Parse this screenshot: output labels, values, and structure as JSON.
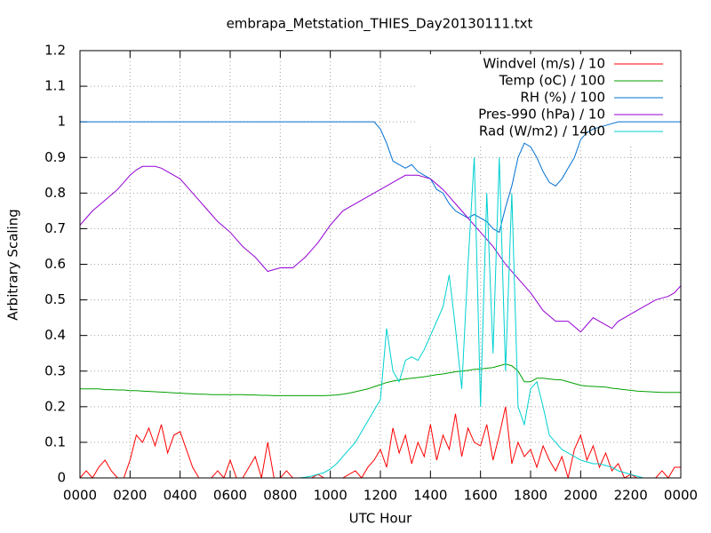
{
  "chart_data": {
    "type": "line",
    "title": "embrapa_Metstation_THIES_Day20130111.txt",
    "x_label": "UTC Hour",
    "y_label": "Arbitrary Scaling",
    "xlim": [
      0,
      24
    ],
    "ylim": [
      0,
      1.2
    ],
    "xticks": [
      {
        "value": 0,
        "label": "0000"
      },
      {
        "value": 2,
        "label": "0200"
      },
      {
        "value": 4,
        "label": "0400"
      },
      {
        "value": 6,
        "label": "0600"
      },
      {
        "value": 8,
        "label": "0800"
      },
      {
        "value": 10,
        "label": "1000"
      },
      {
        "value": 12,
        "label": "1200"
      },
      {
        "value": 14,
        "label": "1400"
      },
      {
        "value": 16,
        "label": "1600"
      },
      {
        "value": 18,
        "label": "1800"
      },
      {
        "value": 20,
        "label": "2000"
      },
      {
        "value": 22,
        "label": "2200"
      },
      {
        "value": 24,
        "label": "0000"
      }
    ],
    "yticks": [
      0,
      0.1,
      0.2,
      0.3,
      0.4,
      0.5,
      0.6,
      0.7,
      0.8,
      0.9,
      1,
      1.1,
      1.2
    ],
    "grid": true,
    "legend": "top-right",
    "x": [
      0,
      0.25,
      0.5,
      0.75,
      1,
      1.25,
      1.5,
      1.75,
      2,
      2.25,
      2.5,
      2.75,
      3,
      3.25,
      3.5,
      3.75,
      4,
      4.25,
      4.5,
      4.75,
      5,
      5.25,
      5.5,
      5.75,
      6,
      6.25,
      6.5,
      6.75,
      7,
      7.25,
      7.5,
      7.75,
      8,
      8.25,
      8.5,
      8.75,
      9,
      9.25,
      9.5,
      9.75,
      10,
      10.25,
      10.5,
      10.75,
      11,
      11.25,
      11.5,
      11.75,
      12,
      12.25,
      12.5,
      12.75,
      13,
      13.25,
      13.5,
      13.75,
      14,
      14.25,
      14.5,
      14.75,
      15,
      15.25,
      15.5,
      15.75,
      16,
      16.25,
      16.5,
      16.75,
      17,
      17.25,
      17.5,
      17.75,
      18,
      18.25,
      18.5,
      18.75,
      19,
      19.25,
      19.5,
      19.75,
      20,
      20.25,
      20.5,
      20.75,
      21,
      21.25,
      21.5,
      21.75,
      22,
      22.25,
      22.5,
      22.75,
      23,
      23.25,
      23.5,
      23.75,
      24
    ],
    "series": [
      {
        "name": "Windvel (m/s) / 10",
        "color": "#ff0000",
        "values": [
          0,
          0.02,
          0,
          0.03,
          0.05,
          0.02,
          0,
          0,
          0.05,
          0.12,
          0.1,
          0.14,
          0.09,
          0.15,
          0.07,
          0.12,
          0.13,
          0.08,
          0.03,
          0,
          0,
          0,
          0.02,
          0,
          0.05,
          0,
          0,
          0.03,
          0.06,
          0,
          0.1,
          0,
          0,
          0.02,
          0,
          0,
          0,
          0,
          0.01,
          0,
          0,
          0,
          0,
          0.01,
          0.02,
          0,
          0.03,
          0.05,
          0.08,
          0.03,
          0.14,
          0.07,
          0.12,
          0.04,
          0.1,
          0.06,
          0.15,
          0.05,
          0.12,
          0.08,
          0.18,
          0.06,
          0.14,
          0.1,
          0.09,
          0.15,
          0.05,
          0.12,
          0.2,
          0.04,
          0.1,
          0.06,
          0.08,
          0.03,
          0.09,
          0.05,
          0.02,
          0.06,
          0,
          0.08,
          0.12,
          0.05,
          0.09,
          0.03,
          0.07,
          0.02,
          0.04,
          0,
          0.01,
          0,
          0,
          0,
          0,
          0.02,
          0,
          0.03,
          0.03
        ]
      },
      {
        "name": "Temp (oC) / 100",
        "color": "#00a000",
        "values": [
          0.25,
          0.25,
          0.25,
          0.25,
          0.248,
          0.248,
          0.247,
          0.247,
          0.245,
          0.245,
          0.244,
          0.243,
          0.242,
          0.241,
          0.24,
          0.239,
          0.238,
          0.237,
          0.236,
          0.235,
          0.235,
          0.234,
          0.234,
          0.234,
          0.234,
          0.234,
          0.234,
          0.233,
          0.233,
          0.232,
          0.232,
          0.231,
          0.231,
          0.231,
          0.231,
          0.231,
          0.231,
          0.231,
          0.231,
          0.231,
          0.232,
          0.233,
          0.235,
          0.238,
          0.242,
          0.246,
          0.25,
          0.256,
          0.262,
          0.268,
          0.272,
          0.275,
          0.278,
          0.28,
          0.282,
          0.284,
          0.287,
          0.29,
          0.292,
          0.295,
          0.298,
          0.3,
          0.302,
          0.305,
          0.306,
          0.308,
          0.31,
          0.315,
          0.32,
          0.315,
          0.3,
          0.27,
          0.27,
          0.28,
          0.28,
          0.278,
          0.276,
          0.275,
          0.27,
          0.265,
          0.26,
          0.258,
          0.257,
          0.256,
          0.255,
          0.252,
          0.25,
          0.248,
          0.246,
          0.244,
          0.243,
          0.242,
          0.241,
          0.24,
          0.24,
          0.24,
          0.24
        ]
      },
      {
        "name": "RH (%) / 100",
        "color": "#0070d0",
        "values": [
          1,
          1,
          1,
          1,
          1,
          1,
          1,
          1,
          1,
          1,
          1,
          1,
          1,
          1,
          1,
          1,
          1,
          1,
          1,
          1,
          1,
          1,
          1,
          1,
          1,
          1,
          1,
          1,
          1,
          1,
          1,
          1,
          1,
          1,
          1,
          1,
          1,
          1,
          1,
          1,
          1,
          1,
          1,
          1,
          1,
          1,
          1,
          1,
          0.98,
          0.94,
          0.89,
          0.88,
          0.87,
          0.88,
          0.86,
          0.85,
          0.84,
          0.81,
          0.8,
          0.77,
          0.75,
          0.74,
          0.73,
          0.74,
          0.73,
          0.72,
          0.7,
          0.69,
          0.76,
          0.82,
          0.9,
          0.94,
          0.93,
          0.9,
          0.86,
          0.83,
          0.82,
          0.84,
          0.87,
          0.9,
          0.95,
          0.97,
          0.98,
          0.985,
          0.99,
          0.995,
          1,
          1,
          1,
          1,
          1,
          1,
          1,
          1,
          1,
          1,
          1
        ]
      },
      {
        "name": "Pres-990 (hPa) / 10",
        "color": "#9400d3",
        "values": [
          0.71,
          0.73,
          0.75,
          0.765,
          0.78,
          0.795,
          0.81,
          0.83,
          0.85,
          0.865,
          0.875,
          0.875,
          0.875,
          0.87,
          0.86,
          0.85,
          0.84,
          0.82,
          0.8,
          0.78,
          0.76,
          0.74,
          0.72,
          0.705,
          0.69,
          0.67,
          0.65,
          0.635,
          0.62,
          0.6,
          0.58,
          0.585,
          0.59,
          0.59,
          0.59,
          0.605,
          0.62,
          0.64,
          0.66,
          0.685,
          0.71,
          0.73,
          0.75,
          0.76,
          0.77,
          0.78,
          0.79,
          0.8,
          0.81,
          0.82,
          0.83,
          0.84,
          0.85,
          0.85,
          0.85,
          0.845,
          0.84,
          0.825,
          0.81,
          0.79,
          0.77,
          0.75,
          0.73,
          0.71,
          0.69,
          0.67,
          0.65,
          0.625,
          0.6,
          0.58,
          0.56,
          0.54,
          0.52,
          0.495,
          0.47,
          0.455,
          0.44,
          0.44,
          0.44,
          0.425,
          0.41,
          0.43,
          0.45,
          0.44,
          0.43,
          0.42,
          0.44,
          0.45,
          0.46,
          0.47,
          0.48,
          0.49,
          0.5,
          0.505,
          0.51,
          0.52,
          0.54
        ]
      },
      {
        "name": "Rad (W/m2) / 1400",
        "color": "#00d0d0",
        "values": [
          0,
          0,
          0,
          0,
          0,
          0,
          0,
          0,
          0,
          0,
          0,
          0,
          0,
          0,
          0,
          0,
          0,
          0,
          0,
          0,
          0,
          0,
          0,
          0,
          0,
          0,
          0,
          0,
          0,
          0,
          0,
          0,
          0,
          0,
          0,
          0,
          0.002,
          0.005,
          0.01,
          0.015,
          0.025,
          0.04,
          0.06,
          0.08,
          0.1,
          0.13,
          0.16,
          0.19,
          0.22,
          0.42,
          0.3,
          0.27,
          0.33,
          0.34,
          0.33,
          0.36,
          0.4,
          0.44,
          0.48,
          0.57,
          0.42,
          0.25,
          0.6,
          0.9,
          0.2,
          0.8,
          0.35,
          0.9,
          0.3,
          0.8,
          0.2,
          0.15,
          0.25,
          0.27,
          0.2,
          0.12,
          0.1,
          0.08,
          0.07,
          0.06,
          0.05,
          0.045,
          0.04,
          0.04,
          0.035,
          0.03,
          0.02,
          0.015,
          0.01,
          0.005,
          0,
          0,
          0,
          0,
          0,
          0,
          0
        ]
      }
    ]
  }
}
